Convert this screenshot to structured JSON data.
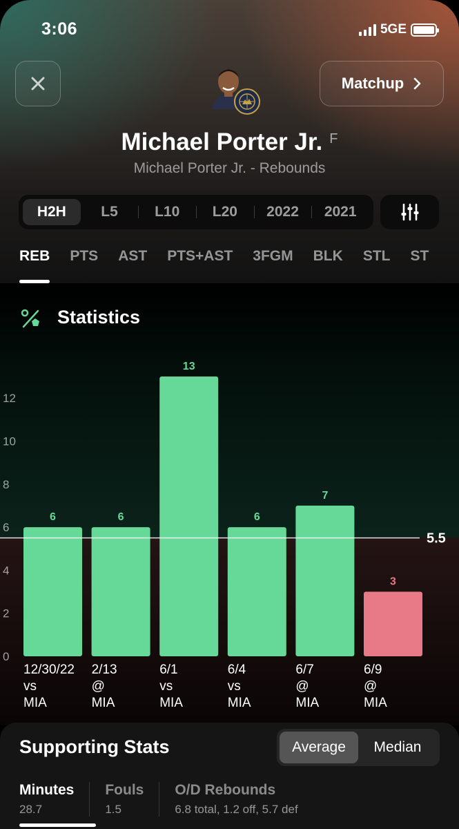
{
  "status_bar": {
    "time": "3:06",
    "network": "5GE"
  },
  "header": {
    "matchup_label": "Matchup",
    "player_name": "Michael Porter Jr.",
    "position": "F",
    "subtitle": "Michael Porter Jr. - Rebounds"
  },
  "periods": [
    {
      "label": "H2H",
      "active": true
    },
    {
      "label": "L5",
      "active": false
    },
    {
      "label": "L10",
      "active": false
    },
    {
      "label": "L20",
      "active": false
    },
    {
      "label": "2022",
      "active": false
    },
    {
      "label": "2021",
      "active": false
    }
  ],
  "stat_tabs": [
    {
      "label": "REB",
      "active": true
    },
    {
      "label": "PTS",
      "active": false
    },
    {
      "label": "AST",
      "active": false
    },
    {
      "label": "PTS+AST",
      "active": false
    },
    {
      "label": "3FGM",
      "active": false
    },
    {
      "label": "BLK",
      "active": false
    },
    {
      "label": "STL",
      "active": false
    },
    {
      "label": "ST",
      "active": false
    }
  ],
  "statistics_title": "Statistics",
  "colors": {
    "over": "#66d998",
    "under": "#e87a88",
    "over_label": "#66d998",
    "under_label": "#e87a88"
  },
  "chart_data": {
    "type": "bar",
    "categories": [
      [
        "12/30/22",
        "vs",
        "MIA"
      ],
      [
        "2/13",
        "@",
        "MIA"
      ],
      [
        "6/1",
        "vs",
        "MIA"
      ],
      [
        "6/4",
        "vs",
        "MIA"
      ],
      [
        "6/7",
        "@",
        "MIA"
      ],
      [
        "6/9",
        "@",
        "MIA"
      ]
    ],
    "values": [
      6,
      6,
      13,
      6,
      7,
      3
    ],
    "y_ticks": [
      0,
      2,
      4,
      6,
      8,
      10,
      12
    ],
    "ylim": [
      0,
      13
    ],
    "threshold": 5.5,
    "threshold_label": "5.5"
  },
  "supporting": {
    "title": "Supporting Stats",
    "toggle": [
      {
        "label": "Average",
        "active": true
      },
      {
        "label": "Median",
        "active": false
      }
    ],
    "metrics": [
      {
        "label": "Minutes",
        "value": "28.7",
        "active": true
      },
      {
        "label": "Fouls",
        "value": "1.5",
        "active": false
      },
      {
        "label": "O/D Rebounds",
        "value": "6.8 total, 1.2 off, 5.7 def",
        "active": false
      }
    ]
  }
}
